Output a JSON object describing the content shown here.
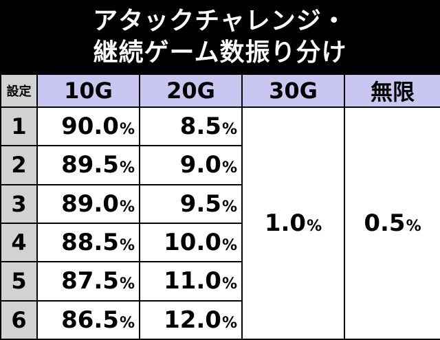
{
  "title": {
    "line1": "アタックチャレンジ・",
    "line2": "継続ゲーム数振り分け"
  },
  "table": {
    "headers": [
      "設定",
      "10G",
      "20G",
      "30G",
      "無限"
    ],
    "rows": [
      {
        "setting": "1",
        "g10": "90.0",
        "g20": "8.5"
      },
      {
        "setting": "2",
        "g10": "89.5",
        "g20": "9.0"
      },
      {
        "setting": "3",
        "g10": "89.0",
        "g20": "9.5"
      },
      {
        "setting": "4",
        "g10": "88.5",
        "g20": "10.0"
      },
      {
        "setting": "5",
        "g10": "87.5",
        "g20": "11.0"
      },
      {
        "setting": "6",
        "g10": "86.5",
        "g20": "12.0"
      }
    ],
    "g30_all": "1.0",
    "unlimited_all": "0.5",
    "percent_sign": "%"
  },
  "colors": {
    "header_bg": "#c9c6f2",
    "setting_bg": "#d2d2d2",
    "title_bg": "#000000"
  }
}
